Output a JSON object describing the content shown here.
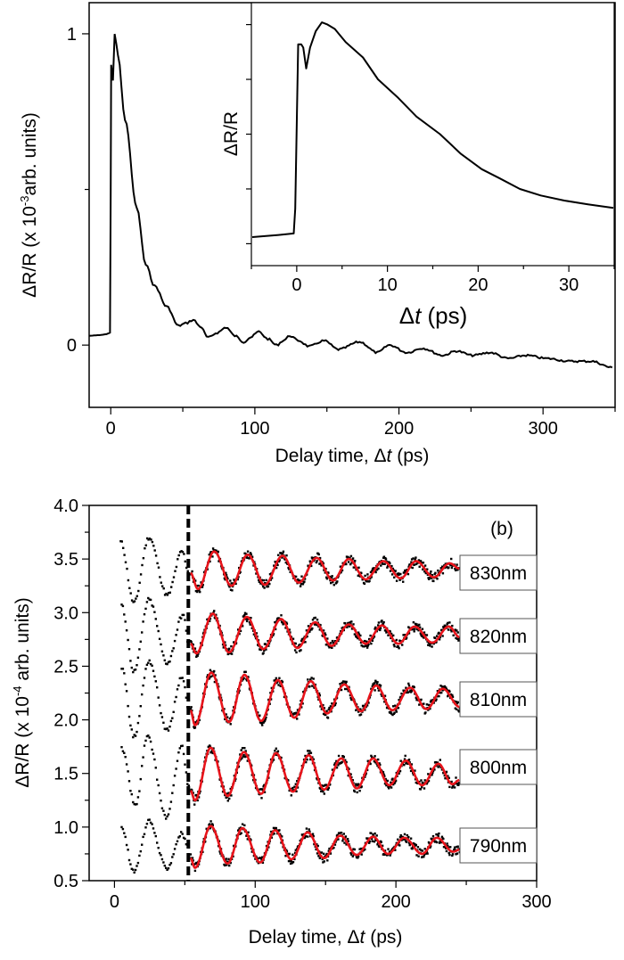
{
  "chart_data": [
    {
      "type": "line",
      "panel": "main",
      "xlabel_prefix": "Delay time, Δ",
      "xlabel_italic": "t",
      "xlabel_suffix": " (ps)",
      "ylabel_prefix": "ΔR/R (x 10",
      "ylabel_sup": "-3",
      "ylabel_suffix": "arb. units)",
      "xlim": [
        -15,
        350
      ],
      "ylim": [
        -0.2,
        1.1
      ],
      "xticks": [
        0,
        100,
        200,
        300
      ],
      "yticks": [
        0,
        1
      ],
      "grid": false,
      "color": "#000000",
      "points": [
        [
          -15,
          0.03
        ],
        [
          -8,
          0.032
        ],
        [
          -3,
          0.035
        ],
        [
          -0.5,
          0.04
        ],
        [
          0,
          0.5
        ],
        [
          0.3,
          0.9
        ],
        [
          1.5,
          0.85
        ],
        [
          2.7,
          1.0
        ],
        [
          5,
          0.93
        ],
        [
          9.9,
          0.725
        ],
        [
          18.1,
          0.44
        ],
        [
          24.3,
          0.258
        ],
        [
          30.5,
          0.19
        ],
        [
          38.8,
          0.124
        ],
        [
          47,
          0.062
        ],
        [
          52,
          0.07
        ],
        [
          57.3,
          0.081
        ],
        [
          62,
          0.06
        ],
        [
          67.6,
          0.024
        ],
        [
          74,
          0.04
        ],
        [
          80,
          0.057
        ],
        [
          86,
          0.03
        ],
        [
          92.3,
          0.01
        ],
        [
          97,
          0.025
        ],
        [
          102.7,
          0.043
        ],
        [
          109,
          0.02
        ],
        [
          115,
          0.0
        ],
        [
          120,
          0.015
        ],
        [
          124.3,
          0.03
        ],
        [
          130,
          0.015
        ],
        [
          137.7,
          -0.004
        ],
        [
          148,
          0.014
        ],
        [
          158,
          -0.014
        ],
        [
          172.7,
          0.01
        ],
        [
          185,
          -0.024
        ],
        [
          193.4,
          0.0
        ],
        [
          205.7,
          -0.024
        ],
        [
          216,
          -0.01
        ],
        [
          230.5,
          -0.033
        ],
        [
          239.8,
          -0.019
        ],
        [
          251,
          -0.033
        ],
        [
          263.4,
          -0.024
        ],
        [
          275.8,
          -0.043
        ],
        [
          288.2,
          -0.033
        ],
        [
          302.6,
          -0.043
        ],
        [
          319,
          -0.052
        ],
        [
          333.5,
          -0.052
        ],
        [
          348,
          -0.072
        ]
      ]
    },
    {
      "type": "line",
      "panel": "inset",
      "xlabel_prefix": "Δ",
      "xlabel_italic": "t",
      "xlabel_suffix": " (ps)",
      "ylabel": "ΔR/R",
      "xlim": [
        -5,
        35
      ],
      "ylim": [
        -0.1,
        1.1
      ],
      "xticks": [
        0,
        10,
        20,
        30
      ],
      "yticks_unlabeled": [
        0,
        0.25,
        0.5,
        0.75,
        1.0
      ],
      "grid": false,
      "color": "#000000",
      "points": [
        [
          -4.9,
          0.03
        ],
        [
          -2,
          0.04
        ],
        [
          -0.33,
          0.047
        ],
        [
          -0.16,
          0.16
        ],
        [
          0.16,
          0.91
        ],
        [
          0.49,
          0.91
        ],
        [
          0.72,
          0.895
        ],
        [
          1.04,
          0.8
        ],
        [
          1.47,
          0.895
        ],
        [
          2.1,
          0.97
        ],
        [
          2.77,
          1.01
        ],
        [
          3.4,
          1.0
        ],
        [
          4.2,
          0.98
        ],
        [
          5.4,
          0.92
        ],
        [
          7.3,
          0.85
        ],
        [
          8.96,
          0.75
        ],
        [
          11.2,
          0.665
        ],
        [
          13.2,
          0.58
        ],
        [
          15.8,
          0.5
        ],
        [
          18.1,
          0.41
        ],
        [
          20.4,
          0.34
        ],
        [
          22.3,
          0.3
        ],
        [
          24.6,
          0.25
        ],
        [
          26.9,
          0.22
        ],
        [
          29.5,
          0.197
        ],
        [
          32.1,
          0.18
        ],
        [
          34.9,
          0.163
        ]
      ]
    },
    {
      "type": "scatter",
      "panel": "b",
      "panel_label": "(b)",
      "xlabel_prefix": "Delay time, Δ",
      "xlabel_italic": "t",
      "xlabel_suffix": " (ps)",
      "ylabel_prefix": "ΔR/R (x 10",
      "ylabel_sup": "-4",
      "ylabel_suffix": " arb. units)",
      "xlim": [
        -18,
        300
      ],
      "ylim": [
        0.5,
        4.0
      ],
      "xticks": [
        0,
        100,
        200,
        300
      ],
      "yticks": [
        0.5,
        1.0,
        1.5,
        2.0,
        2.5,
        3.0,
        3.5,
        4.0
      ],
      "ytick_labels": [
        "0.5",
        "1.0",
        "1.5",
        "2.0",
        "2.5",
        "3.0",
        "3.5",
        "4.0"
      ],
      "grid": false,
      "dashed_line_x": 52.5,
      "data_color": "#000000",
      "fit_color": "#e8141b",
      "series": [
        {
          "name": "830nm",
          "data_pre": [
            [
              4.4,
              3.66
            ],
            [
              13.9,
              3.09
            ],
            [
              24.5,
              3.7
            ],
            [
              37.6,
              3.16
            ],
            [
              48.1,
              3.57
            ],
            [
              53.0,
              3.37
            ]
          ],
          "fit": [
            [
              54.0,
              3.37
            ],
            [
              59.3,
              3.22
            ],
            [
              70.9,
              3.57
            ],
            [
              83.1,
              3.25
            ],
            [
              94.7,
              3.54
            ],
            [
              106.8,
              3.26
            ],
            [
              119.4,
              3.53
            ],
            [
              131.0,
              3.28
            ],
            [
              143.7,
              3.51
            ],
            [
              155.3,
              3.3
            ],
            [
              166.5,
              3.5
            ],
            [
              178.5,
              3.31
            ],
            [
              191.1,
              3.48
            ],
            [
              203.4,
              3.32
            ],
            [
              214.3,
              3.48
            ],
            [
              227.0,
              3.33
            ],
            [
              238.2,
              3.46
            ],
            [
              245.4,
              3.41
            ]
          ]
        },
        {
          "name": "820nm",
          "data_pre": [
            [
              5.1,
              3.06
            ],
            [
              13.9,
              2.45
            ],
            [
              24.5,
              3.12
            ],
            [
              37.6,
              2.53
            ],
            [
              48.7,
              2.98
            ],
            [
              53.0,
              2.7
            ]
          ],
          "fit": [
            [
              54.0,
              2.71
            ],
            [
              58.2,
              2.62
            ],
            [
              69.8,
              2.99
            ],
            [
              81.4,
              2.63
            ],
            [
              94.1,
              2.96
            ],
            [
              105.7,
              2.66
            ],
            [
              118.4,
              2.94
            ],
            [
              130.0,
              2.67
            ],
            [
              142.6,
              2.91
            ],
            [
              154.2,
              2.69
            ],
            [
              166.5,
              2.89
            ],
            [
              178.5,
              2.71
            ],
            [
              190.1,
              2.88
            ],
            [
              201.7,
              2.71
            ],
            [
              213.3,
              2.87
            ],
            [
              225.9,
              2.72
            ],
            [
              237.6,
              2.87
            ],
            [
              245.4,
              2.77
            ]
          ]
        },
        {
          "name": "810nm",
          "data_pre": [
            [
              5.1,
              2.48
            ],
            [
              13.9,
              1.84
            ],
            [
              24.5,
              2.55
            ],
            [
              37.6,
              1.9
            ],
            [
              48.1,
              2.4
            ],
            [
              53.0,
              2.09
            ]
          ],
          "fit": [
            [
              54.0,
              2.09
            ],
            [
              57.2,
              1.95
            ],
            [
              68.8,
              2.44
            ],
            [
              81.4,
              1.98
            ],
            [
              92.4,
              2.42
            ],
            [
              104.2,
              1.99
            ],
            [
              116.2,
              2.37
            ],
            [
              127.8,
              2.02
            ],
            [
              139.5,
              2.36
            ],
            [
              151.1,
              2.06
            ],
            [
              163.3,
              2.33
            ],
            [
              175.3,
              2.08
            ],
            [
              185.9,
              2.32
            ],
            [
              197.5,
              2.09
            ],
            [
              210.1,
              2.3
            ],
            [
              221.7,
              2.1
            ],
            [
              233.3,
              2.29
            ],
            [
              245.4,
              2.12
            ]
          ]
        },
        {
          "name": "800nm",
          "data_pre": [
            [
              5.1,
              1.73
            ],
            [
              15.0,
              1.2
            ],
            [
              23.4,
              1.84
            ],
            [
              37.1,
              1.09
            ],
            [
              47.7,
              1.76
            ],
            [
              53.0,
              1.37
            ]
          ],
          "fit": [
            [
              54.0,
              1.34
            ],
            [
              57.2,
              1.25
            ],
            [
              68.4,
              1.74
            ],
            [
              80.4,
              1.29
            ],
            [
              92.0,
              1.7
            ],
            [
              104.2,
              1.31
            ],
            [
              114.8,
              1.69
            ],
            [
              126.8,
              1.33
            ],
            [
              138.0,
              1.67
            ],
            [
              148.9,
              1.35
            ],
            [
              161.2,
              1.64
            ],
            [
              172.2,
              1.36
            ],
            [
              183.8,
              1.64
            ],
            [
              195.4,
              1.39
            ],
            [
              207.0,
              1.62
            ],
            [
              218.6,
              1.39
            ],
            [
              230.2,
              1.59
            ],
            [
              240.1,
              1.4
            ],
            [
              245.4,
              1.44
            ]
          ]
        },
        {
          "name": "790nm",
          "data_pre": [
            [
              5.1,
              0.98
            ],
            [
              13.9,
              0.58
            ],
            [
              24.5,
              1.05
            ],
            [
              37.1,
              0.62
            ],
            [
              47.7,
              0.94
            ],
            [
              53.0,
              0.81
            ]
          ],
          "fit": [
            [
              54.0,
              0.71
            ],
            [
              57.2,
              0.62
            ],
            [
              68.4,
              1.01
            ],
            [
              80.4,
              0.66
            ],
            [
              90.9,
              0.99
            ],
            [
              103.6,
              0.67
            ],
            [
              114.1,
              0.97
            ],
            [
              125.7,
              0.7
            ],
            [
              137.3,
              0.95
            ],
            [
              148.9,
              0.71
            ],
            [
              160.5,
              0.92
            ],
            [
              172.2,
              0.74
            ],
            [
              183.8,
              0.91
            ],
            [
              194.3,
              0.75
            ],
            [
              205.9,
              0.9
            ],
            [
              218.6,
              0.75
            ],
            [
              229.1,
              0.9
            ],
            [
              240.7,
              0.77
            ],
            [
              245.4,
              0.79
            ]
          ]
        }
      ]
    }
  ]
}
